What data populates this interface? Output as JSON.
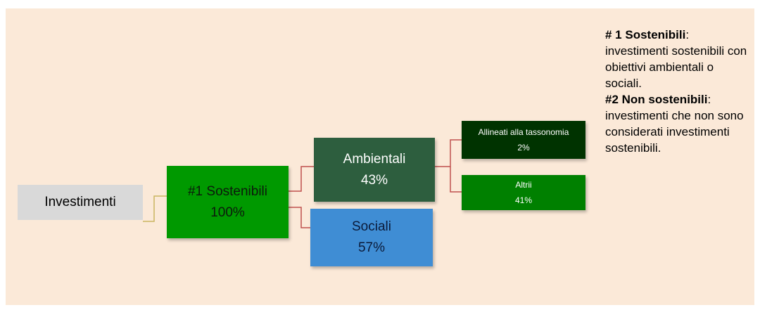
{
  "nodes": [
    {
      "label": "Investimenti"
    },
    {
      "label": "#1 Sostenibili",
      "value": "100%"
    },
    {
      "label": "Ambientali",
      "value": "43%"
    },
    {
      "label": "Sociali",
      "value": "57%"
    },
    {
      "label": "Allineati alla tassonomia",
      "value": "2%"
    },
    {
      "label": "Altrii",
      "value": "41%"
    }
  ],
  "legend": [
    {
      "term": "# 1 Sostenibili",
      "sep": ":",
      "text": "investimenti sostenibili con obiettivi ambientali o sociali."
    },
    {
      "term": "#2 Non sostenibili",
      "sep": ":",
      "text": "investimenti che non sono considerati investimenti sostenibili."
    }
  ]
}
